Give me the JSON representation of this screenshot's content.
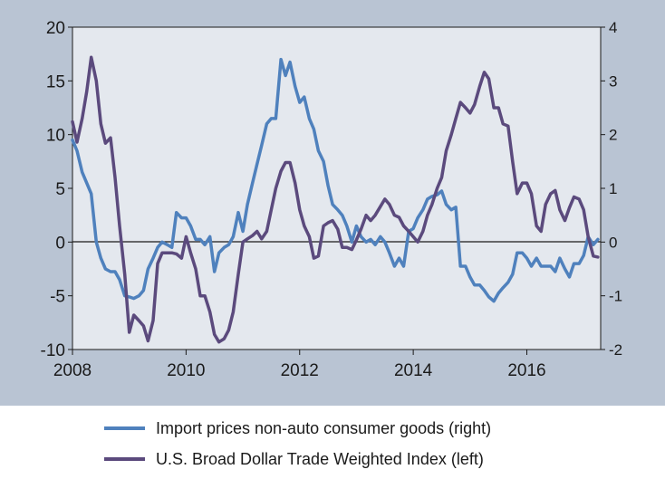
{
  "chart_data": {
    "type": "line",
    "x_range": [
      2008.0,
      2017.3
    ],
    "x_ticks": [
      "2008",
      "2010",
      "2012",
      "2014",
      "2016"
    ],
    "y_left": {
      "range": [
        -10,
        20
      ],
      "ticks": [
        "20",
        "15",
        "10",
        "5",
        "0",
        "-5",
        "-10"
      ]
    },
    "y_right": {
      "range": [
        -2,
        4
      ],
      "ticks": [
        "4",
        "3",
        "2",
        "1",
        "0",
        "-1",
        "-2"
      ]
    },
    "zero_line": true,
    "grid": false,
    "legend_position": "bottom",
    "series": [
      {
        "name": "Import prices non-auto consumer goods (right)",
        "axis": "right",
        "color": "#4f81bd",
        "points": [
          [
            2008.0,
            1.9
          ],
          [
            2008.08,
            1.7
          ],
          [
            2008.17,
            1.3
          ],
          [
            2008.25,
            1.1
          ],
          [
            2008.33,
            0.9
          ],
          [
            2008.42,
            0.0
          ],
          [
            2008.5,
            -0.3
          ],
          [
            2008.58,
            -0.5
          ],
          [
            2008.67,
            -0.55
          ],
          [
            2008.75,
            -0.55
          ],
          [
            2008.83,
            -0.7
          ],
          [
            2008.92,
            -1.0
          ],
          [
            2009.0,
            -1.02
          ],
          [
            2009.08,
            -1.05
          ],
          [
            2009.17,
            -1.0
          ],
          [
            2009.25,
            -0.9
          ],
          [
            2009.33,
            -0.5
          ],
          [
            2009.42,
            -0.3
          ],
          [
            2009.5,
            -0.1
          ],
          [
            2009.58,
            0.0
          ],
          [
            2009.67,
            -0.05
          ],
          [
            2009.75,
            -0.1
          ],
          [
            2009.83,
            0.55
          ],
          [
            2009.92,
            0.45
          ],
          [
            2010.0,
            0.45
          ],
          [
            2010.08,
            0.3
          ],
          [
            2010.17,
            0.05
          ],
          [
            2010.25,
            0.05
          ],
          [
            2010.33,
            -0.05
          ],
          [
            2010.42,
            0.1
          ],
          [
            2010.5,
            -0.55
          ],
          [
            2010.58,
            -0.2
          ],
          [
            2010.67,
            -0.1
          ],
          [
            2010.75,
            -0.05
          ],
          [
            2010.83,
            0.1
          ],
          [
            2010.92,
            0.55
          ],
          [
            2011.0,
            0.2
          ],
          [
            2011.08,
            0.7
          ],
          [
            2011.17,
            1.1
          ],
          [
            2011.25,
            1.45
          ],
          [
            2011.33,
            1.8
          ],
          [
            2011.42,
            2.2
          ],
          [
            2011.5,
            2.3
          ],
          [
            2011.58,
            2.3
          ],
          [
            2011.67,
            3.4
          ],
          [
            2011.75,
            3.1
          ],
          [
            2011.83,
            3.35
          ],
          [
            2011.92,
            2.9
          ],
          [
            2012.0,
            2.6
          ],
          [
            2012.08,
            2.7
          ],
          [
            2012.17,
            2.3
          ],
          [
            2012.25,
            2.1
          ],
          [
            2012.33,
            1.7
          ],
          [
            2012.42,
            1.5
          ],
          [
            2012.5,
            1.05
          ],
          [
            2012.58,
            0.7
          ],
          [
            2012.67,
            0.6
          ],
          [
            2012.75,
            0.5
          ],
          [
            2012.83,
            0.3
          ],
          [
            2012.92,
            0.0
          ],
          [
            2013.0,
            0.3
          ],
          [
            2013.08,
            0.1
          ],
          [
            2013.17,
            0.0
          ],
          [
            2013.25,
            0.05
          ],
          [
            2013.33,
            -0.05
          ],
          [
            2013.42,
            0.1
          ],
          [
            2013.5,
            0.0
          ],
          [
            2013.58,
            -0.2
          ],
          [
            2013.67,
            -0.45
          ],
          [
            2013.75,
            -0.3
          ],
          [
            2013.83,
            -0.45
          ],
          [
            2013.92,
            0.2
          ],
          [
            2014.0,
            0.25
          ],
          [
            2014.08,
            0.45
          ],
          [
            2014.17,
            0.6
          ],
          [
            2014.25,
            0.8
          ],
          [
            2014.33,
            0.85
          ],
          [
            2014.42,
            0.88
          ],
          [
            2014.5,
            0.95
          ],
          [
            2014.58,
            0.7
          ],
          [
            2014.67,
            0.6
          ],
          [
            2014.75,
            0.65
          ],
          [
            2014.83,
            -0.45
          ],
          [
            2014.92,
            -0.45
          ],
          [
            2015.0,
            -0.65
          ],
          [
            2015.08,
            -0.8
          ],
          [
            2015.17,
            -0.8
          ],
          [
            2015.25,
            -0.9
          ],
          [
            2015.33,
            -1.02
          ],
          [
            2015.42,
            -1.1
          ],
          [
            2015.5,
            -0.95
          ],
          [
            2015.58,
            -0.85
          ],
          [
            2015.67,
            -0.75
          ],
          [
            2015.75,
            -0.6
          ],
          [
            2015.83,
            -0.2
          ],
          [
            2015.92,
            -0.2
          ],
          [
            2016.0,
            -0.3
          ],
          [
            2016.08,
            -0.45
          ],
          [
            2016.17,
            -0.3
          ],
          [
            2016.25,
            -0.45
          ],
          [
            2016.33,
            -0.45
          ],
          [
            2016.42,
            -0.45
          ],
          [
            2016.5,
            -0.55
          ],
          [
            2016.58,
            -0.3
          ],
          [
            2016.67,
            -0.5
          ],
          [
            2016.75,
            -0.65
          ],
          [
            2016.83,
            -0.4
          ],
          [
            2016.92,
            -0.4
          ],
          [
            2017.0,
            -0.25
          ],
          [
            2017.08,
            0.1
          ],
          [
            2017.17,
            -0.05
          ],
          [
            2017.25,
            0.05
          ]
        ]
      },
      {
        "name": "U.S. Broad Dollar Trade Weighted Index (left)",
        "axis": "left",
        "color": "#5b4a7d",
        "points": [
          [
            2008.0,
            11.2
          ],
          [
            2008.08,
            9.3
          ],
          [
            2008.17,
            11.5
          ],
          [
            2008.25,
            14.0
          ],
          [
            2008.33,
            17.2
          ],
          [
            2008.42,
            15.0
          ],
          [
            2008.5,
            11.0
          ],
          [
            2008.58,
            9.2
          ],
          [
            2008.67,
            9.7
          ],
          [
            2008.75,
            6.0
          ],
          [
            2008.83,
            1.5
          ],
          [
            2008.92,
            -3.0
          ],
          [
            2009.0,
            -8.4
          ],
          [
            2009.08,
            -6.8
          ],
          [
            2009.17,
            -7.3
          ],
          [
            2009.25,
            -7.8
          ],
          [
            2009.33,
            -9.2
          ],
          [
            2009.42,
            -7.3
          ],
          [
            2009.5,
            -2.0
          ],
          [
            2009.58,
            -1.0
          ],
          [
            2009.67,
            -1.0
          ],
          [
            2009.75,
            -1.0
          ],
          [
            2009.83,
            -1.1
          ],
          [
            2009.92,
            -1.5
          ],
          [
            2010.0,
            0.5
          ],
          [
            2010.08,
            -1.0
          ],
          [
            2010.17,
            -2.5
          ],
          [
            2010.25,
            -5.0
          ],
          [
            2010.33,
            -5.0
          ],
          [
            2010.42,
            -6.5
          ],
          [
            2010.5,
            -8.6
          ],
          [
            2010.58,
            -9.3
          ],
          [
            2010.67,
            -9.0
          ],
          [
            2010.75,
            -8.2
          ],
          [
            2010.83,
            -6.5
          ],
          [
            2010.92,
            -3.0
          ],
          [
            2011.0,
            0.0
          ],
          [
            2011.08,
            0.3
          ],
          [
            2011.17,
            0.6
          ],
          [
            2011.25,
            1.0
          ],
          [
            2011.33,
            0.3
          ],
          [
            2011.42,
            1.0
          ],
          [
            2011.5,
            3.0
          ],
          [
            2011.58,
            5.0
          ],
          [
            2011.67,
            6.6
          ],
          [
            2011.75,
            7.4
          ],
          [
            2011.83,
            7.4
          ],
          [
            2011.92,
            5.5
          ],
          [
            2012.0,
            3.0
          ],
          [
            2012.08,
            1.5
          ],
          [
            2012.17,
            0.5
          ],
          [
            2012.25,
            -1.5
          ],
          [
            2012.33,
            -1.3
          ],
          [
            2012.42,
            1.5
          ],
          [
            2012.5,
            1.8
          ],
          [
            2012.58,
            2.0
          ],
          [
            2012.67,
            1.2
          ],
          [
            2012.75,
            -0.5
          ],
          [
            2012.83,
            -0.5
          ],
          [
            2012.92,
            -0.7
          ],
          [
            2013.0,
            0.2
          ],
          [
            2013.08,
            1.2
          ],
          [
            2013.17,
            2.5
          ],
          [
            2013.25,
            2.0
          ],
          [
            2013.33,
            2.5
          ],
          [
            2013.42,
            3.3
          ],
          [
            2013.5,
            4.0
          ],
          [
            2013.58,
            3.5
          ],
          [
            2013.67,
            2.5
          ],
          [
            2013.75,
            2.3
          ],
          [
            2013.83,
            1.5
          ],
          [
            2013.92,
            1.0
          ],
          [
            2014.0,
            0.5
          ],
          [
            2014.08,
            0.0
          ],
          [
            2014.17,
            1.0
          ],
          [
            2014.25,
            2.5
          ],
          [
            2014.33,
            3.5
          ],
          [
            2014.42,
            5.0
          ],
          [
            2014.5,
            6.0
          ],
          [
            2014.58,
            8.5
          ],
          [
            2014.67,
            10.0
          ],
          [
            2014.75,
            11.5
          ],
          [
            2014.83,
            13.0
          ],
          [
            2014.92,
            12.5
          ],
          [
            2015.0,
            12.0
          ],
          [
            2015.08,
            12.8
          ],
          [
            2015.17,
            14.5
          ],
          [
            2015.25,
            15.8
          ],
          [
            2015.33,
            15.2
          ],
          [
            2015.42,
            12.5
          ],
          [
            2015.5,
            12.5
          ],
          [
            2015.58,
            11.0
          ],
          [
            2015.67,
            10.8
          ],
          [
            2015.75,
            7.5
          ],
          [
            2015.83,
            4.5
          ],
          [
            2015.92,
            5.5
          ],
          [
            2016.0,
            5.5
          ],
          [
            2016.08,
            4.5
          ],
          [
            2016.17,
            1.5
          ],
          [
            2016.25,
            1.0
          ],
          [
            2016.33,
            3.5
          ],
          [
            2016.42,
            4.5
          ],
          [
            2016.5,
            4.8
          ],
          [
            2016.58,
            3.0
          ],
          [
            2016.67,
            2.0
          ],
          [
            2016.75,
            3.2
          ],
          [
            2016.83,
            4.2
          ],
          [
            2016.92,
            4.0
          ],
          [
            2017.0,
            3.0
          ],
          [
            2017.08,
            0.5
          ],
          [
            2017.17,
            -1.3
          ],
          [
            2017.25,
            -1.4
          ]
        ]
      }
    ]
  }
}
